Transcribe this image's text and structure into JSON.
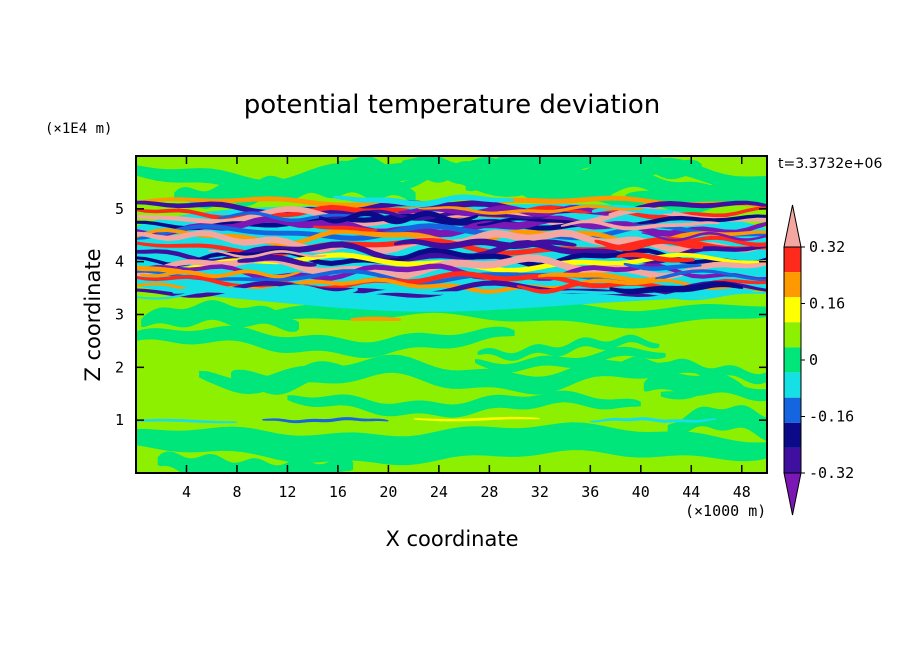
{
  "chart_data": {
    "type": "heatmap",
    "title": "potential temperature deviation",
    "xlabel": "X coordinate",
    "ylabel": "Z coordinate",
    "x_unit": "(×1000 m)",
    "y_unit": "(×1E4 m)",
    "time_label": "t=3.3732e+06",
    "xlim": [
      0,
      50
    ],
    "ylim": [
      0,
      6
    ],
    "x_ticks": [
      "4",
      "8",
      "12",
      "16",
      "20",
      "24",
      "28",
      "32",
      "36",
      "40",
      "44",
      "48"
    ],
    "y_ticks": [
      "1",
      "2",
      "3",
      "4",
      "5"
    ],
    "colorbar": {
      "levels": [
        -0.4,
        -0.32,
        -0.24,
        -0.16,
        -0.08,
        0,
        0.08,
        0.16,
        0.24,
        0.32,
        0.4
      ],
      "tick_labels": [
        "-0.32",
        "-0.16",
        "0",
        "0.16",
        "0.32"
      ],
      "colors": [
        "#7a17b5",
        "#3f0fa0",
        "#0b0b8a",
        "#1565e0",
        "#14e0e6",
        "#00e67a",
        "#8cf000",
        "#ffff00",
        "#ff9900",
        "#ff2a1c",
        "#f4a7a0"
      ],
      "extend": "both"
    },
    "bands": [
      {
        "z_range": [
          0.0,
          1.0
        ],
        "description": "lower layer, mostly near-zero values (0 to 0.08) with patches of -0.08 to 0"
      },
      {
        "z_range": [
          1.0,
          1.05
        ],
        "description": "thin line with small positive and negative deviations"
      },
      {
        "z_range": [
          1.05,
          3.3
        ],
        "description": "mid layer, mixed -0.08 to 0.08"
      },
      {
        "z_range": [
          3.3,
          5.3
        ],
        "description": "strongly stratified region with alternating layers from below -0.32 to above 0.32"
      },
      {
        "z_range": [
          5.3,
          6.0
        ],
        "description": "upper layer, mixed -0.08 to 0.08"
      }
    ]
  }
}
